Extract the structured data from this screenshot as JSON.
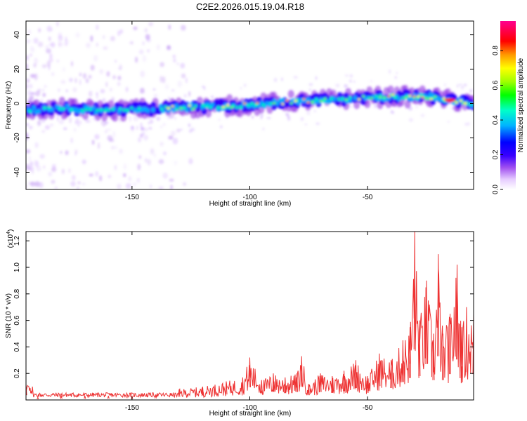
{
  "title": "C2E2.2026.015.19.04.R18",
  "chart_data": [
    {
      "type": "heatmap",
      "name": "spectrogram",
      "xlabel": "Height of straight line (km)",
      "ylabel": "Frequency (Hz)",
      "xlim": [
        -195,
        -5
      ],
      "ylim": [
        -50,
        48
      ],
      "xticks": [
        -150,
        -100,
        -50
      ],
      "yticks": [
        -40,
        -20,
        0,
        20,
        40
      ],
      "colorbar": {
        "label": "Normalized spectral amplitude",
        "range": [
          0,
          0.97
        ],
        "ticks": [
          0.0,
          0.2,
          0.4,
          0.6,
          0.8
        ],
        "colors": [
          "#ffffff",
          "#d9b3ff",
          "#8a2be2",
          "#3a00ff",
          "#0000ff",
          "#00c8ff",
          "#00ffb0",
          "#00ff00",
          "#b4ff00",
          "#ffff00",
          "#ff9900",
          "#ff0000",
          "#ff0090"
        ]
      },
      "ridge": {
        "x": [
          -195,
          -180,
          -160,
          -140,
          -120,
          -100,
          -85,
          -70,
          -55,
          -40,
          -25,
          -15,
          -5
        ],
        "frequency_hz": [
          -4,
          -3,
          -4,
          -3,
          -2,
          -1,
          1,
          2,
          3,
          4,
          4,
          2,
          0
        ]
      }
    },
    {
      "type": "line",
      "name": "snr",
      "xlabel": "Height of straight line (km)",
      "ylabel": "SNR (10 * v/v)",
      "y_multiplier": "(x10",
      "y_multiplier_exp": "4",
      "xlim": [
        -195,
        -5
      ],
      "ylim": [
        0,
        1.27
      ],
      "xticks": [
        -150,
        -100,
        -50
      ],
      "yticks": [
        0.2,
        0.4,
        0.6,
        0.8,
        1.0,
        1.2
      ],
      "color": "#ee3333",
      "series": [
        {
          "name": "SNR",
          "x": [
            -195,
            -190,
            -180,
            -170,
            -160,
            -150,
            -140,
            -130,
            -120,
            -110,
            -103,
            -100,
            -95,
            -90,
            -85,
            -80,
            -78,
            -75,
            -70,
            -65,
            -60,
            -55,
            -50,
            -45,
            -40,
            -35,
            -32,
            -30,
            -28,
            -25,
            -22,
            -20,
            -18,
            -15,
            -12,
            -10,
            -8,
            -5
          ],
          "values": [
            0.12,
            0.02,
            0.03,
            0.03,
            0.03,
            0.03,
            0.04,
            0.08,
            0.1,
            0.14,
            0.17,
            0.32,
            0.15,
            0.2,
            0.17,
            0.2,
            0.33,
            0.12,
            0.2,
            0.18,
            0.22,
            0.3,
            0.18,
            0.35,
            0.3,
            0.45,
            0.55,
            1.27,
            0.6,
            0.9,
            0.5,
            1.1,
            0.5,
            0.65,
            1.02,
            0.55,
            0.7,
            0.65
          ]
        }
      ]
    }
  ]
}
